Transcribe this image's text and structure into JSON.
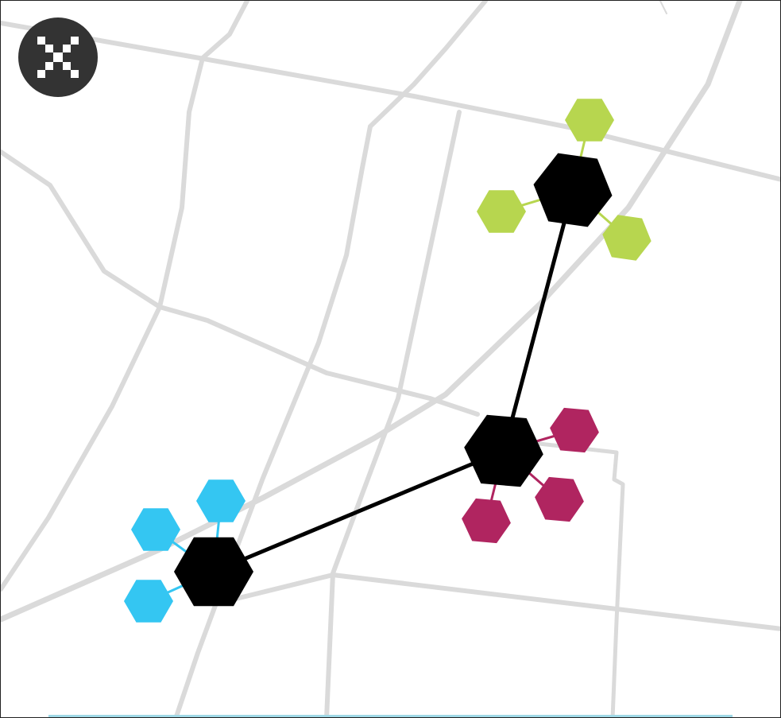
{
  "close_button": {
    "icon": "close-icon"
  },
  "colors": {
    "road": "#dadada",
    "hub": "#000000",
    "link": "#000000",
    "green": "#b7d64f",
    "magenta": "#b02560",
    "blue": "#34c6f2",
    "close_button_bg": "#333333"
  },
  "clusters": [
    {
      "name": "green-cluster",
      "color_key": "green",
      "satellites": 3
    },
    {
      "name": "magenta-cluster",
      "color_key": "magenta",
      "satellites": 3
    },
    {
      "name": "blue-cluster",
      "color_key": "blue",
      "satellites": 3
    }
  ],
  "links": [
    {
      "from": "green-cluster",
      "to": "magenta-cluster"
    },
    {
      "from": "magenta-cluster",
      "to": "blue-cluster"
    }
  ]
}
